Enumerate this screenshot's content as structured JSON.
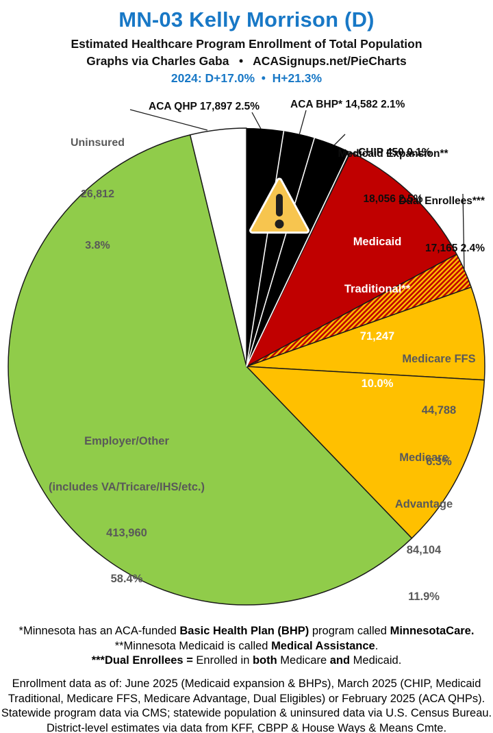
{
  "header": {
    "title": "MN-03 Kelly Morrison (D)",
    "subtitle1": "Estimated Healthcare Program Enrollment of Total Population",
    "subtitle2": "Graphs via Charles Gaba   •   ACASignups.net/PieCharts",
    "partisan_line": "2024: D+17.0%  •  H+21.3%"
  },
  "colors": {
    "title_blue": "#1878C6",
    "aca_black": "#000000",
    "medicaid_red": "#C00000",
    "medicare_gold": "#FFC000",
    "employer_green": "#90CC4A",
    "uninsured_white": "#FFFFFF",
    "gray_label": "#595959",
    "white_label": "#FFFFFF",
    "warning_fill": "#F7C54F",
    "outline": "#1a1a1a"
  },
  "chart_data": {
    "type": "pie",
    "title": "Estimated Healthcare Program Enrollment of Total Population",
    "start_angle_deg": 0,
    "direction": "clockwise",
    "legend_position": "around-pie-callouts",
    "total_pct": 100.0,
    "segments": [
      {
        "id": "aca-qhp",
        "name": "ACA QHP",
        "value": "17,897",
        "pct": 2.5,
        "color": "#000000",
        "label": "ACA QHP 17,897 2.5%"
      },
      {
        "id": "aca-bhp",
        "name": "ACA BHP*",
        "value": "14,582",
        "pct": 2.1,
        "color": "#000000",
        "label": "ACA BHP* 14,582 2.1%"
      },
      {
        "id": "medicaid-expansion",
        "name": "Medicaid Expansion**",
        "value": "18,056",
        "pct": 2.5,
        "color": "#000000",
        "label_lines": [
          "Medicaid Expansion**",
          "18,056 2.5%"
        ]
      },
      {
        "id": "chip",
        "name": "CHIP",
        "value": "450",
        "pct": 0.1,
        "color": "#000000",
        "label": "CHIP 450 0.1%"
      },
      {
        "id": "medicaid-traditional",
        "name": "Medicaid Traditional**",
        "value": "71,247",
        "pct": 10.0,
        "color": "#C00000",
        "label_lines": [
          "Medicaid",
          "Traditional**",
          "71,247",
          "10.0%"
        ]
      },
      {
        "id": "dual-enrollees",
        "name": "Dual Enrollees***",
        "value": "17,165",
        "pct": 2.4,
        "color": "#C00000",
        "pattern": "diagonal-stripes-red-gold",
        "label_lines": [
          "Dual Enrollees***",
          "17,165 2.4%"
        ]
      },
      {
        "id": "medicare-ffs",
        "name": "Medicare FFS",
        "value": "44,788",
        "pct": 6.3,
        "color": "#FFC000",
        "label_lines": [
          "Medicare FFS",
          "44,788",
          "6.3%"
        ]
      },
      {
        "id": "medicare-advantage",
        "name": "Medicare Advantage",
        "value": "84,104",
        "pct": 11.9,
        "color": "#FFC000",
        "label_lines": [
          "Medicare",
          "Advantage",
          "84,104",
          "11.9%"
        ]
      },
      {
        "id": "employer-other",
        "name": "Employer/Other (includes VA/Tricare/IHS/etc.)",
        "value": "413,960",
        "pct": 58.4,
        "color": "#90CC4A",
        "label_lines": [
          "Employer/Other",
          "(includes VA/Tricare/IHS/etc.)",
          "413,960",
          "58.4%"
        ]
      },
      {
        "id": "uninsured",
        "name": "Uninsured",
        "value": "26,812",
        "pct": 3.8,
        "color": "#FFFFFF",
        "label_lines": [
          "Uninsured",
          "26,812",
          "3.8%"
        ]
      }
    ]
  },
  "footnotes": {
    "lines": [
      [
        {
          "t": "*Minnesota has an ACA-funded ",
          "b": false
        },
        {
          "t": "Basic Health Plan (BHP)",
          "b": true
        },
        {
          "t": " program called ",
          "b": false
        },
        {
          "t": "MinnesotaCare.",
          "b": true
        }
      ],
      [
        {
          "t": "**Minnesota Medicaid is called ",
          "b": false
        },
        {
          "t": "Medical Assistance",
          "b": true
        },
        {
          "t": ".",
          "b": false
        }
      ],
      [
        {
          "t": "***Dual Enrollees =",
          "b": true
        },
        {
          "t": " Enrolled in ",
          "b": false
        },
        {
          "t": "both",
          "b": true
        },
        {
          "t": " Medicare ",
          "b": false
        },
        {
          "t": "and",
          "b": true
        },
        {
          "t": " Medicaid.",
          "b": false
        }
      ]
    ]
  },
  "source_note": {
    "lines": [
      "Enrollment data as of: June 2025 (Medicaid expansion & BHPs), March 2025 (CHIP, Medicaid",
      "Traditional, Medicare FFS, Medicare Advantage, Dual Eligibles) or February 2025 (ACA QHPs).",
      "Statewide program data via CMS; statewide population & uninsured data via U.S. Census Bureau.",
      "District-level estimates via data from KFF, CBPP & House Ways & Means Cmte."
    ]
  }
}
